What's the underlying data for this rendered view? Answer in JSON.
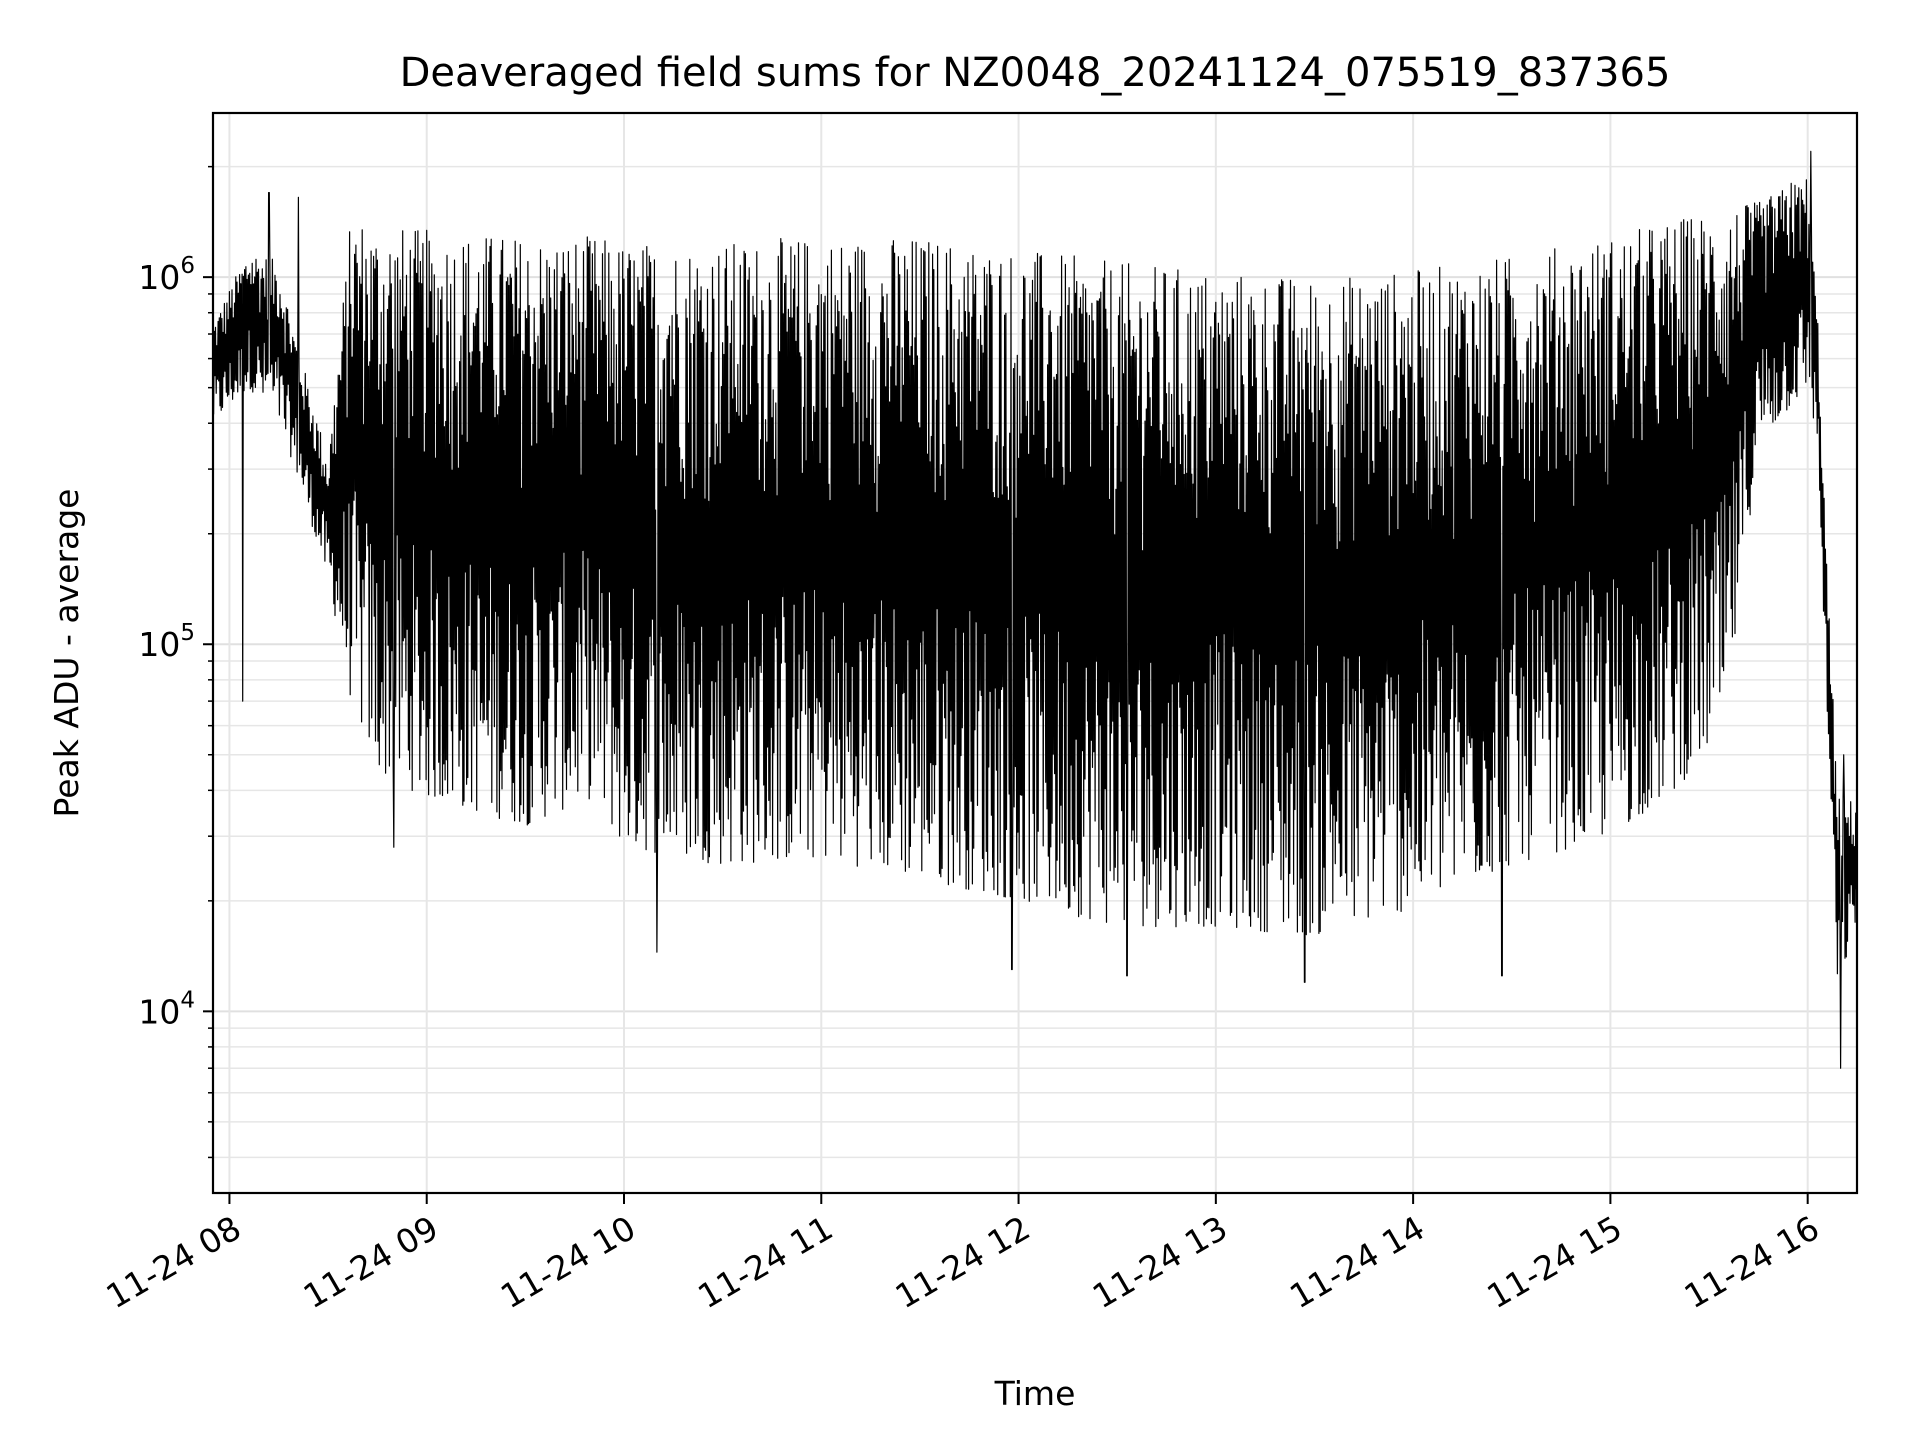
{
  "chart_data": {
    "type": "line",
    "title": "Deaveraged field sums for NZ0048_20241124_075519_837365",
    "xlabel": "Time",
    "ylabel": "Peak ADU - average",
    "yscale": "log",
    "ylim": [
      3200,
      2800000
    ],
    "xlim": [
      "2024-11-24 07:55",
      "2024-11-24 16:15"
    ],
    "grid": true,
    "line_color": "#000000",
    "x_ticks": [
      {
        "time": "2024-11-24 08:00",
        "label": "11-24 08"
      },
      {
        "time": "2024-11-24 09:00",
        "label": "11-24 09"
      },
      {
        "time": "2024-11-24 10:00",
        "label": "11-24 10"
      },
      {
        "time": "2024-11-24 11:00",
        "label": "11-24 11"
      },
      {
        "time": "2024-11-24 12:00",
        "label": "11-24 12"
      },
      {
        "time": "2024-11-24 13:00",
        "label": "11-24 13"
      },
      {
        "time": "2024-11-24 14:00",
        "label": "11-24 14"
      },
      {
        "time": "2024-11-24 15:00",
        "label": "11-24 15"
      },
      {
        "time": "2024-11-24 16:00",
        "label": "11-24 16"
      }
    ],
    "y_ticks": [
      {
        "value": 10000,
        "base": "10",
        "exp": "4"
      },
      {
        "value": 100000,
        "base": "10",
        "exp": "5"
      },
      {
        "value": 1000000,
        "base": "10",
        "exp": "6"
      }
    ],
    "envelope": {
      "time": [
        "2024-11-24 07:55",
        "2024-11-24 08:06",
        "2024-11-24 08:15",
        "2024-11-24 08:20",
        "2024-11-24 08:30",
        "2024-11-24 08:37",
        "2024-11-24 08:45",
        "2024-11-24 09:00",
        "2024-11-24 09:30",
        "2024-11-24 09:50",
        "2024-11-24 10:00",
        "2024-11-24 10:30",
        "2024-11-24 11:00",
        "2024-11-24 11:30",
        "2024-11-24 12:00",
        "2024-11-24 12:30",
        "2024-11-24 13:00",
        "2024-11-24 13:30",
        "2024-11-24 14:00",
        "2024-11-24 14:30",
        "2024-11-24 15:00",
        "2024-11-24 15:20",
        "2024-11-24 15:35",
        "2024-11-24 15:45",
        "2024-11-24 16:00",
        "2024-11-24 16:03",
        "2024-11-24 16:06",
        "2024-11-24 16:09",
        "2024-11-24 16:12",
        "2024-11-24 16:15"
      ],
      "high": [
        750000,
        1200000,
        1100000,
        700000,
        320000,
        1500000,
        1400000,
        1350000,
        1300000,
        1300000,
        1250000,
        1250000,
        1300000,
        1300000,
        1200000,
        1100000,
        1050000,
        1000000,
        1050000,
        1150000,
        1300000,
        1450000,
        1550000,
        1600000,
        1900000,
        800000,
        150000,
        40000,
        38000,
        37000
      ],
      "low": [
        400000,
        500000,
        400000,
        300000,
        150000,
        70000,
        45000,
        38000,
        32000,
        38000,
        28000,
        25000,
        26000,
        23000,
        20000,
        17000,
        17000,
        16000,
        19000,
        25000,
        30000,
        40000,
        60000,
        350000,
        500000,
        350000,
        60000,
        12000,
        14000,
        18000
      ]
    },
    "spikes": [
      {
        "time": "2024-11-24 08:04",
        "value": 70000
      },
      {
        "time": "2024-11-24 08:12",
        "value": 1700000
      },
      {
        "time": "2024-11-24 08:21",
        "value": 1650000
      },
      {
        "time": "2024-11-24 08:50",
        "value": 28000
      },
      {
        "time": "2024-11-24 10:10",
        "value": 14500
      },
      {
        "time": "2024-11-24 11:58",
        "value": 13000
      },
      {
        "time": "2024-11-24 12:33",
        "value": 12500
      },
      {
        "time": "2024-11-24 13:27",
        "value": 12000
      },
      {
        "time": "2024-11-24 14:27",
        "value": 12500
      },
      {
        "time": "2024-11-24 15:55",
        "value": 1800000
      },
      {
        "time": "2024-11-24 16:01",
        "value": 2200000
      },
      {
        "time": "2024-11-24 16:10",
        "value": 7000
      },
      {
        "time": "2024-11-24 16:11",
        "value": 50000
      }
    ]
  }
}
